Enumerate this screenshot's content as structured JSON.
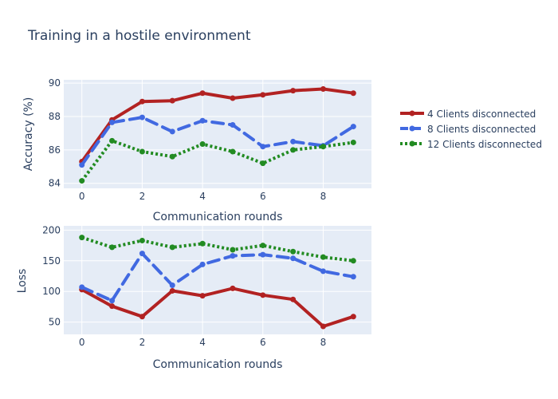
{
  "figure": {
    "title": "Training in a hostile environment"
  },
  "legend": {
    "placement": "right"
  },
  "chart_data": [
    {
      "type": "line",
      "xlabel": "Communication rounds",
      "ylabel": "Accuracy (%)",
      "xlim": [
        -0.6,
        9.6
      ],
      "ylim": [
        83.7,
        90.2
      ],
      "xticks": [
        0,
        2,
        4,
        6,
        8
      ],
      "yticks": [
        84,
        86,
        88,
        90
      ],
      "grid": true,
      "x": [
        0,
        1,
        2,
        3,
        4,
        5,
        6,
        7,
        8,
        9
      ],
      "series": [
        {
          "name": "4 Clients disconnected",
          "color": "#b22222",
          "dash": "solid",
          "values": [
            85.3,
            87.8,
            88.9,
            88.95,
            89.4,
            89.1,
            89.3,
            89.55,
            89.65,
            89.4
          ]
        },
        {
          "name": "8 Clients disconnected",
          "color": "#4169e1",
          "dash": "dash",
          "values": [
            85.1,
            87.65,
            87.95,
            87.1,
            87.75,
            87.5,
            86.2,
            86.5,
            86.25,
            87.4
          ]
        },
        {
          "name": "12 Clients disconnected",
          "color": "#228b22",
          "dash": "dot",
          "values": [
            84.15,
            86.55,
            85.9,
            85.6,
            86.35,
            85.9,
            85.2,
            86.0,
            86.2,
            86.45
          ]
        }
      ]
    },
    {
      "type": "line",
      "xlabel": "Communication rounds",
      "ylabel": "Loss",
      "xlim": [
        -0.6,
        9.6
      ],
      "ylim": [
        30,
        207
      ],
      "xticks": [
        0,
        2,
        4,
        6,
        8
      ],
      "yticks": [
        50,
        100,
        150,
        200
      ],
      "grid": true,
      "x": [
        0,
        1,
        2,
        3,
        4,
        5,
        6,
        7,
        8,
        9
      ],
      "series": [
        {
          "name": "4 Clients disconnected",
          "color": "#b22222",
          "dash": "solid",
          "values": [
            103,
            76,
            59,
            101,
            93,
            105,
            94,
            87,
            43,
            59
          ]
        },
        {
          "name": "8 Clients disconnected",
          "color": "#4169e1",
          "dash": "dash",
          "values": [
            107,
            85,
            162,
            110,
            144,
            158,
            160,
            154,
            133,
            124
          ]
        },
        {
          "name": "12 Clients disconnected",
          "color": "#228b22",
          "dash": "dot",
          "values": [
            188,
            172,
            183,
            172,
            178,
            168,
            175,
            165,
            156,
            150
          ]
        }
      ]
    }
  ]
}
